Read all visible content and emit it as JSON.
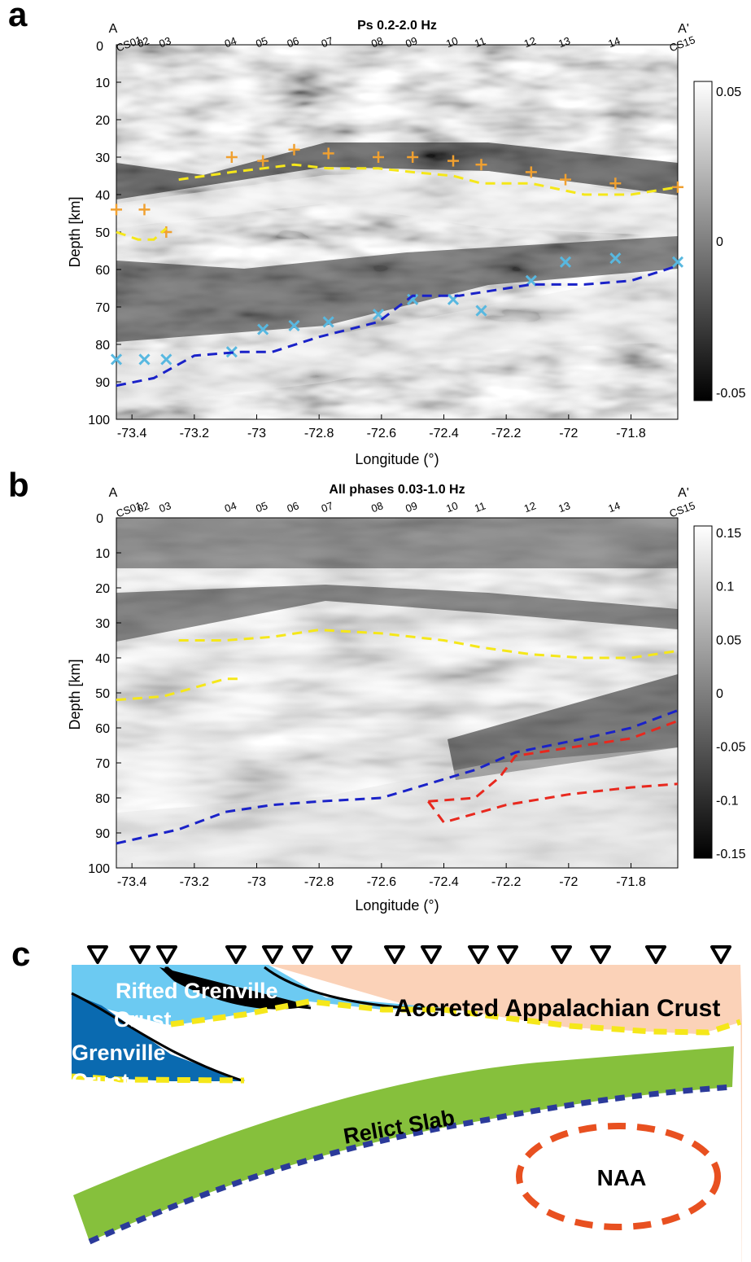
{
  "panels": {
    "a": {
      "letter": "a",
      "title": "Ps 0.2-2.0 Hz",
      "ylabel": "Depth [km]",
      "xlabel": "Longitude (°)",
      "end_label_left": "A",
      "end_label_right": "A'",
      "first_station": "CS01",
      "last_station": "CS15",
      "stations": [
        "02",
        "03",
        "04",
        "05",
        "06",
        "07",
        "08",
        "09",
        "10",
        "11",
        "12",
        "13",
        "14"
      ],
      "y_ticks": [
        "0",
        "10",
        "20",
        "30",
        "40",
        "50",
        "60",
        "70",
        "80",
        "90",
        "100"
      ],
      "x_ticks": [
        "-73.4",
        "-73.2",
        "-73",
        "-72.8",
        "-72.6",
        "-72.4",
        "-72.2",
        "-72",
        "-71.8"
      ],
      "colorbar_ticks": [
        "0.05",
        "0",
        "-0.05"
      ]
    },
    "b": {
      "letter": "b",
      "title": "All phases 0.03-1.0 Hz",
      "ylabel": "Depth [km]",
      "xlabel": "Longitude (°)",
      "end_label_left": "A",
      "end_label_right": "A'",
      "first_station": "CS01",
      "last_station": "CS15",
      "stations": [
        "02",
        "03",
        "04",
        "05",
        "06",
        "07",
        "08",
        "09",
        "10",
        "11",
        "12",
        "13",
        "14"
      ],
      "y_ticks": [
        "0",
        "10",
        "20",
        "30",
        "40",
        "50",
        "60",
        "70",
        "80",
        "90",
        "100"
      ],
      "x_ticks": [
        "-73.4",
        "-73.2",
        "-73",
        "-72.8",
        "-72.6",
        "-72.4",
        "-72.2",
        "-72",
        "-71.8"
      ],
      "colorbar_ticks": [
        "0.15",
        "0.1",
        "0.05",
        "0",
        "-0.05",
        "-0.1",
        "-0.15"
      ]
    },
    "c": {
      "letter": "c",
      "labels": {
        "rifted": "Rifted Grenville",
        "crust_word": "Crust",
        "grenville": "Grenville",
        "grenville_crust": "Crust",
        "appalachian": "Accreted Appalachian Crust",
        "slab": "Relict Slab",
        "naa": "NAA"
      }
    }
  },
  "colors": {
    "moho_yellow": "#f5e71a",
    "slab_blue": "#1a22c8",
    "naa_red": "#e8281e",
    "plus_orange": "#f0a030",
    "cross_cyan": "#58b8e0",
    "grenville_dark": "#0a6ab0",
    "grenville_light": "#6ccaf2",
    "appalachian": "#fbd2b8",
    "slab_green": "#86c03c",
    "slab_edge": "#2b3a9a",
    "naa_outline": "#e85020"
  },
  "chart_data": [
    {
      "type": "heatmap",
      "title": "Ps 0.2-2.0 Hz",
      "xlabel": "Longitude (°)",
      "ylabel": "Depth [km]",
      "xlim": [
        -73.45,
        -71.65
      ],
      "ylim": [
        100,
        0
      ],
      "colorbar": [
        -0.05,
        0.05
      ],
      "stations": [
        {
          "name": "CS01",
          "lon": -73.45
        },
        {
          "name": "02",
          "lon": -73.36
        },
        {
          "name": "03",
          "lon": -73.29
        },
        {
          "name": "04",
          "lon": -73.08
        },
        {
          "name": "05",
          "lon": -72.98
        },
        {
          "name": "06",
          "lon": -72.88
        },
        {
          "name": "07",
          "lon": -72.77
        },
        {
          "name": "08",
          "lon": -72.61
        },
        {
          "name": "09",
          "lon": -72.5
        },
        {
          "name": "10",
          "lon": -72.37
        },
        {
          "name": "11",
          "lon": -72.28
        },
        {
          "name": "12",
          "lon": -72.12
        },
        {
          "name": "13",
          "lon": -72.01
        },
        {
          "name": "14",
          "lon": -71.85
        },
        {
          "name": "CS15",
          "lon": -71.65
        }
      ],
      "series": [
        {
          "marker": "plus",
          "color": "#f0a030",
          "points": [
            [
              -73.45,
              44
            ],
            [
              -73.36,
              44
            ],
            [
              -73.29,
              50
            ],
            [
              -73.08,
              30
            ],
            [
              -72.98,
              31
            ],
            [
              -72.88,
              28
            ],
            [
              -72.77,
              29
            ],
            [
              -72.61,
              30
            ],
            [
              -72.5,
              30
            ],
            [
              -72.37,
              31
            ],
            [
              -72.28,
              32
            ],
            [
              -72.12,
              34
            ],
            [
              -72.01,
              36
            ],
            [
              -71.85,
              37
            ],
            [
              -71.65,
              38
            ]
          ]
        },
        {
          "marker": "x",
          "color": "#58b8e0",
          "points": [
            [
              -73.45,
              84
            ],
            [
              -73.36,
              84
            ],
            [
              -73.29,
              84
            ],
            [
              -73.08,
              82
            ],
            [
              -72.98,
              76
            ],
            [
              -72.88,
              75
            ],
            [
              -72.77,
              74
            ],
            [
              -72.61,
              72
            ],
            [
              -72.5,
              68
            ],
            [
              -72.37,
              68
            ],
            [
              -72.28,
              71
            ],
            [
              -72.12,
              63
            ],
            [
              -72.01,
              58
            ],
            [
              -71.85,
              57
            ],
            [
              -71.65,
              58
            ]
          ]
        },
        {
          "line": "dashed",
          "color": "#f5e71a",
          "points": [
            [
              -73.45,
              50
            ],
            [
              -73.38,
              52
            ],
            [
              -73.33,
              52
            ],
            [
              -73.29,
              49
            ]
          ]
        },
        {
          "line": "dashed",
          "color": "#f5e71a",
          "points": [
            [
              -73.25,
              36
            ],
            [
              -73.08,
              34
            ],
            [
              -72.88,
              32
            ],
            [
              -72.77,
              33
            ],
            [
              -72.61,
              33
            ],
            [
              -72.5,
              34
            ],
            [
              -72.37,
              35
            ],
            [
              -72.28,
              37
            ],
            [
              -72.12,
              37
            ],
            [
              -71.95,
              40
            ],
            [
              -71.8,
              40
            ],
            [
              -71.65,
              38
            ]
          ]
        },
        {
          "line": "dashed",
          "color": "#1a22c8",
          "points": [
            [
              -73.45,
              91
            ],
            [
              -73.33,
              89
            ],
            [
              -73.2,
              83
            ],
            [
              -73.05,
              82
            ],
            [
              -72.95,
              82
            ],
            [
              -72.8,
              78
            ],
            [
              -72.61,
              74
            ],
            [
              -72.5,
              67
            ],
            [
              -72.35,
              67
            ],
            [
              -72.12,
              64
            ],
            [
              -71.95,
              64
            ],
            [
              -71.8,
              63
            ],
            [
              -71.65,
              59
            ]
          ]
        }
      ]
    },
    {
      "type": "heatmap",
      "title": "All phases 0.03-1.0 Hz",
      "xlabel": "Longitude (°)",
      "ylabel": "Depth [km]",
      "xlim": [
        -73.45,
        -71.65
      ],
      "ylim": [
        100,
        0
      ],
      "colorbar": [
        -0.15,
        0.15
      ],
      "series": [
        {
          "line": "dashed",
          "color": "#f5e71a",
          "points": [
            [
              -73.45,
              52
            ],
            [
              -73.3,
              51
            ],
            [
              -73.18,
              48
            ],
            [
              -73.1,
              46
            ],
            [
              -73.05,
              46
            ]
          ]
        },
        {
          "line": "dashed",
          "color": "#f5e71a",
          "points": [
            [
              -73.25,
              35
            ],
            [
              -73.1,
              35
            ],
            [
              -72.95,
              34
            ],
            [
              -72.8,
              32
            ],
            [
              -72.6,
              33
            ],
            [
              -72.4,
              35
            ],
            [
              -72.28,
              37
            ],
            [
              -72.12,
              39
            ],
            [
              -71.95,
              40
            ],
            [
              -71.8,
              40
            ],
            [
              -71.65,
              38
            ]
          ]
        },
        {
          "line": "dashed",
          "color": "#1a22c8",
          "points": [
            [
              -73.45,
              93
            ],
            [
              -73.25,
              89
            ],
            [
              -73.1,
              84
            ],
            [
              -72.95,
              82
            ],
            [
              -72.8,
              81
            ],
            [
              -72.6,
              80
            ],
            [
              -72.45,
              76
            ],
            [
              -72.3,
              72
            ],
            [
              -72.17,
              67
            ],
            [
              -71.95,
              63
            ],
            [
              -71.8,
              60
            ],
            [
              -71.65,
              55
            ]
          ]
        },
        {
          "line": "dashed",
          "color": "#e8281e",
          "points": [
            [
              -72.45,
              81
            ],
            [
              -72.3,
              80
            ],
            [
              -72.22,
              74
            ],
            [
              -72.17,
              68
            ],
            [
              -71.95,
              65
            ],
            [
              -71.8,
              63
            ],
            [
              -71.65,
              58
            ]
          ]
        },
        {
          "line": "dashed",
          "color": "#e8281e",
          "points": [
            [
              -72.45,
              81
            ],
            [
              -72.4,
              87
            ],
            [
              -72.2,
              82
            ],
            [
              -72.0,
              79
            ],
            [
              -71.8,
              77
            ],
            [
              -71.65,
              76
            ]
          ]
        }
      ]
    }
  ]
}
